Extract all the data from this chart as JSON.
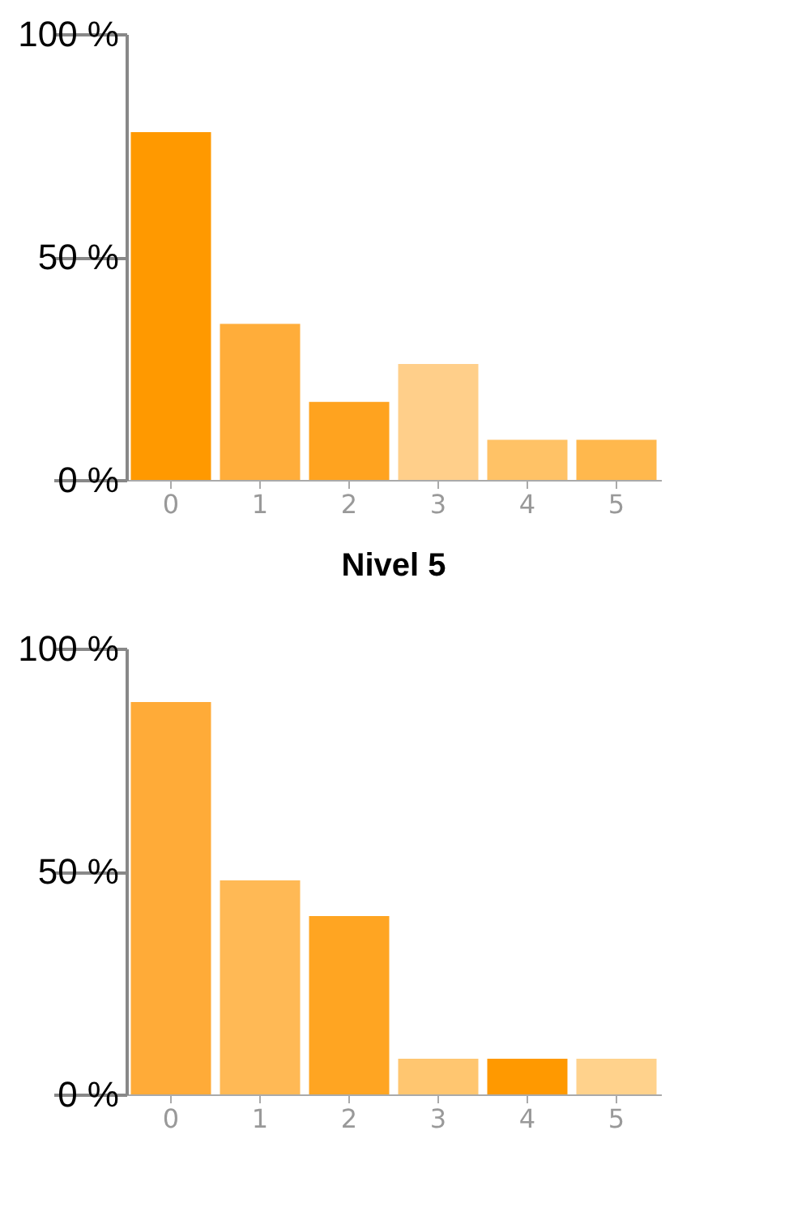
{
  "chart_data": [
    {
      "type": "bar",
      "categories": [
        "0",
        "1",
        "2",
        "3",
        "4",
        "5"
      ],
      "values": [
        78,
        35,
        17.5,
        26,
        9,
        9
      ],
      "colors": [
        "#ff9900",
        "#ffad3a",
        "#ffa31f",
        "#ffcf8a",
        "#ffc266",
        "#ffb84d"
      ],
      "ylim": [
        0,
        100
      ],
      "yticks": [
        {
          "value": 0,
          "label": "0 %"
        },
        {
          "value": 50,
          "label": "50 %"
        },
        {
          "value": 100,
          "label": "100 %"
        }
      ],
      "grid": false
    },
    {
      "type": "bar",
      "title": "Nivel 5",
      "categories": [
        "0",
        "1",
        "2",
        "3",
        "4",
        "5"
      ],
      "values": [
        88,
        48,
        40,
        8,
        8,
        8
      ],
      "colors": [
        "#ffab38",
        "#ffb955",
        "#ffa522",
        "#ffc670",
        "#ff9900",
        "#ffd28c"
      ],
      "ylim": [
        0,
        100
      ],
      "yticks": [
        {
          "value": 0,
          "label": "0 %"
        },
        {
          "value": 50,
          "label": "50 %"
        },
        {
          "value": 100,
          "label": "100 %"
        }
      ],
      "grid": false
    }
  ]
}
